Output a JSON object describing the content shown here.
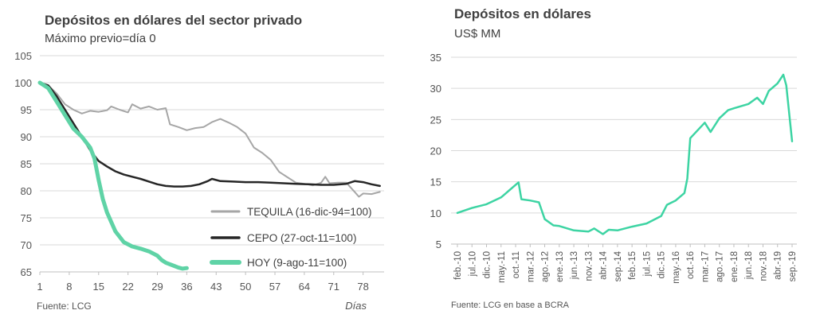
{
  "chart_data": [
    {
      "type": "line",
      "title": "Depósitos en dólares del sector privado",
      "subtitle": "Máximo previo=día 0",
      "xlabel": "Días",
      "source": "Fuente: LCG",
      "x_ticks": [
        1,
        8,
        15,
        22,
        29,
        36,
        43,
        50,
        57,
        64,
        71,
        78
      ],
      "xlim": [
        1,
        83
      ],
      "y_ticks": [
        65,
        70,
        75,
        80,
        85,
        90,
        95,
        100,
        105
      ],
      "ylim": [
        65,
        105
      ],
      "grid": true,
      "legend_position": "bottom-right",
      "series": [
        {
          "name": "TEQUILA (16-dic-94=100)",
          "color": "#a6a6a6",
          "points": [
            [
              1,
              100
            ],
            [
              3,
              99.5
            ],
            [
              5,
              98
            ],
            [
              7,
              96
            ],
            [
              9,
              95
            ],
            [
              11,
              94.3
            ],
            [
              13,
              94.8
            ],
            [
              15,
              94.6
            ],
            [
              17,
              94.9
            ],
            [
              18,
              95.6
            ],
            [
              20,
              95
            ],
            [
              22,
              94.5
            ],
            [
              23,
              96
            ],
            [
              25,
              95.2
            ],
            [
              27,
              95.6
            ],
            [
              29,
              95
            ],
            [
              31,
              95.3
            ],
            [
              32,
              92.3
            ],
            [
              34,
              91.8
            ],
            [
              36,
              91.2
            ],
            [
              38,
              91.6
            ],
            [
              40,
              91.8
            ],
            [
              42,
              92.7
            ],
            [
              44,
              93.3
            ],
            [
              46,
              92.6
            ],
            [
              48,
              91.8
            ],
            [
              50,
              90.6
            ],
            [
              52,
              88
            ],
            [
              54,
              87
            ],
            [
              56,
              85.7
            ],
            [
              58,
              83.5
            ],
            [
              60,
              82.5
            ],
            [
              62,
              81.5
            ],
            [
              64,
              81.3
            ],
            [
              66,
              81
            ],
            [
              68,
              81.5
            ],
            [
              69,
              82.6
            ],
            [
              70,
              81.4
            ],
            [
              72,
              81.5
            ],
            [
              74,
              81.5
            ],
            [
              76,
              79.8
            ],
            [
              77,
              78.9
            ],
            [
              78,
              79.5
            ],
            [
              80,
              79.4
            ],
            [
              82,
              79.8
            ]
          ]
        },
        {
          "name": "CEPO (27-oct-11=100)",
          "color": "#262626",
          "points": [
            [
              1,
              100
            ],
            [
              3,
              99.5
            ],
            [
              5,
              97.5
            ],
            [
              7,
              95
            ],
            [
              9,
              92.5
            ],
            [
              11,
              90
            ],
            [
              13,
              87.5
            ],
            [
              15,
              85.5
            ],
            [
              17,
              84.5
            ],
            [
              19,
              83.6
            ],
            [
              21,
              83
            ],
            [
              23,
              82.6
            ],
            [
              25,
              82.2
            ],
            [
              27,
              81.7
            ],
            [
              29,
              81.2
            ],
            [
              31,
              80.9
            ],
            [
              33,
              80.8
            ],
            [
              35,
              80.8
            ],
            [
              37,
              80.9
            ],
            [
              39,
              81.2
            ],
            [
              41,
              81.8
            ],
            [
              42,
              82.2
            ],
            [
              44,
              81.8
            ],
            [
              47,
              81.7
            ],
            [
              50,
              81.6
            ],
            [
              53,
              81.6
            ],
            [
              56,
              81.5
            ],
            [
              59,
              81.4
            ],
            [
              62,
              81.3
            ],
            [
              65,
              81.2
            ],
            [
              68,
              81.1
            ],
            [
              71,
              81.1
            ],
            [
              74,
              81.3
            ],
            [
              76,
              81.8
            ],
            [
              78,
              81.6
            ],
            [
              80,
              81.2
            ],
            [
              82,
              80.9
            ]
          ]
        },
        {
          "name": "HOY (9-ago-11=100)",
          "color": "#5fd3a6",
          "points": [
            [
              1,
              100
            ],
            [
              3,
              99
            ],
            [
              5,
              96.5
            ],
            [
              7,
              94
            ],
            [
              9,
              91.5
            ],
            [
              11,
              90
            ],
            [
              13,
              88
            ],
            [
              14,
              86
            ],
            [
              15,
              82
            ],
            [
              16,
              78.5
            ],
            [
              17,
              76
            ],
            [
              19,
              72.5
            ],
            [
              21,
              70.5
            ],
            [
              23,
              69.7
            ],
            [
              25,
              69.3
            ],
            [
              27,
              68.8
            ],
            [
              29,
              68
            ],
            [
              30,
              67.2
            ],
            [
              31,
              66.7
            ],
            [
              33,
              66.1
            ],
            [
              34,
              65.8
            ],
            [
              35,
              65.6
            ],
            [
              36,
              65.7
            ]
          ]
        }
      ]
    },
    {
      "type": "line",
      "title": "Depósitos en dólares",
      "subtitle": "US$ MM",
      "source": "Fuente: LCG en base a BCRA",
      "x_ticks": [
        "feb.-10",
        "jul.-10",
        "dic.-10",
        "may.-11",
        "oct.-11",
        "mar.-12",
        "ago.-12",
        "ene.-13",
        "jun.-13",
        "nov.-13",
        "abr.-14",
        "sep.-14",
        "feb.-15",
        "jul.-15",
        "dic.-15",
        "may.-16",
        "oct.-16",
        "mar.-17",
        "ago.-17",
        "ene.-18",
        "jun.-18",
        "nov.-18",
        "abr.-19",
        "sep.-19"
      ],
      "y_ticks": [
        5,
        10,
        15,
        20,
        25,
        30,
        35
      ],
      "ylim": [
        5,
        35
      ],
      "grid": true,
      "series": [
        {
          "name": "",
          "color": "#3dd4a3",
          "points": [
            [
              "feb.-10",
              10
            ],
            [
              "jul.-10",
              10.8
            ],
            [
              "dic.-10",
              11.4
            ],
            [
              "may.-11",
              12.5
            ],
            [
              "oct.-11",
              14.5
            ],
            [
              "nov.-11",
              14.9
            ],
            [
              "dic.-11",
              12.2
            ],
            [
              "mar.-12",
              12
            ],
            [
              "jun.-12",
              11.7
            ],
            [
              "ago.-12",
              9
            ],
            [
              "nov.-12",
              8
            ],
            [
              "ene.-13",
              7.9
            ],
            [
              "jun.-13",
              7.2
            ],
            [
              "nov.-13",
              7
            ],
            [
              "ene.-14",
              7.5
            ],
            [
              "abr.-14",
              6.6
            ],
            [
              "jun.-14",
              7.3
            ],
            [
              "sep.-14",
              7.2
            ],
            [
              "feb.-15",
              7.8
            ],
            [
              "jul.-15",
              8.3
            ],
            [
              "dic.-15",
              9.5
            ],
            [
              "feb.-16",
              11.3
            ],
            [
              "may.-16",
              12
            ],
            [
              "ago.-16",
              13.2
            ],
            [
              "sep.-16",
              15.5
            ],
            [
              "oct.-16",
              22
            ],
            [
              "mar.-17",
              24.5
            ],
            [
              "may.-17",
              23
            ],
            [
              "ago.-17",
              25.2
            ],
            [
              "nov.-17",
              26.5
            ],
            [
              "ene.-18",
              26.8
            ],
            [
              "jun.-18",
              27.5
            ],
            [
              "sep.-18",
              28.5
            ],
            [
              "nov.-18",
              27.5
            ],
            [
              "ene.-19",
              29.6
            ],
            [
              "abr.-19",
              30.8
            ],
            [
              "jun.-19",
              32.2
            ],
            [
              "jul.-19",
              30.5
            ],
            [
              "sep.-19",
              21.5
            ]
          ]
        }
      ]
    }
  ]
}
